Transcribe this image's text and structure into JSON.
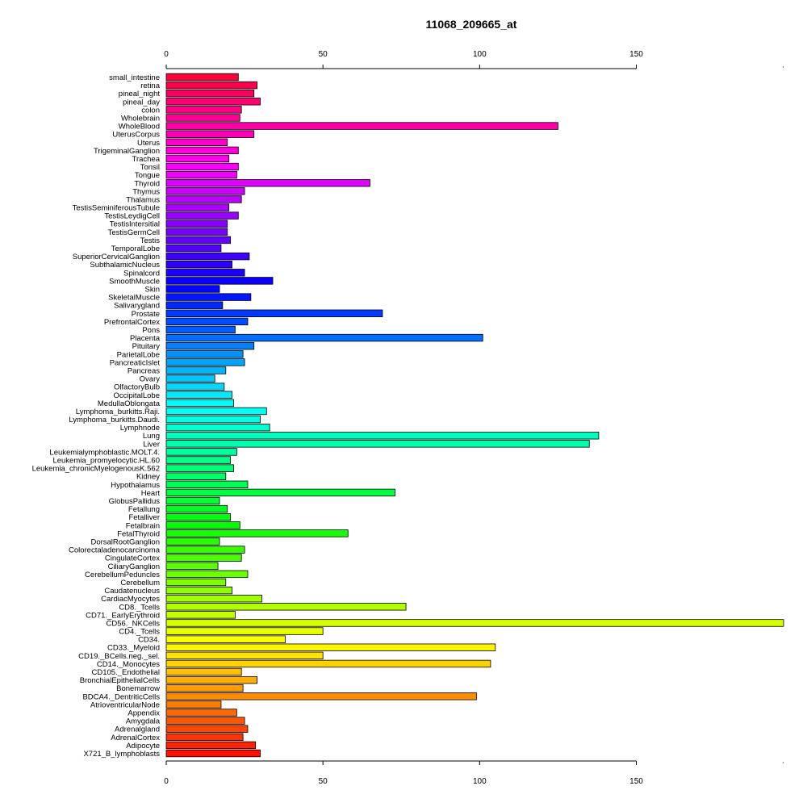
{
  "chart_data": {
    "type": "bar",
    "orientation": "horizontal",
    "title": "11068_209665_at",
    "xlabel": "",
    "ylabel": "",
    "xlim": [
      0,
      197
    ],
    "xticks": [
      0,
      50,
      100,
      150
    ],
    "grid": false,
    "categories": [
      "small_intestine",
      "retina",
      "pineal_night",
      "pineal_day",
      "colon",
      "Wholebrain",
      "WholeBlood",
      "UterusCorpus",
      "Uterus",
      "TrigeminalGanglion",
      "Trachea",
      "Tonsil",
      "Tongue",
      "Thyroid",
      "Thymus",
      "Thalamus",
      "TestisSeminiferousTubule",
      "TestisLeydigCell",
      "TestisIntersitial",
      "TestisGermCell",
      "Testis",
      "TemporalLobe",
      "SuperiorCervicalGanglion",
      "SubthalamicNucleus",
      "Spinalcord",
      "SmoothMuscle",
      "Skin",
      "SkeletalMuscle",
      "Salivarygland",
      "Prostate",
      "PrefrontalCortex",
      "Pons",
      "Placenta",
      "Pituitary",
      "ParietalLobe",
      "PancreaticIslet",
      "Pancreas",
      "Ovary",
      "OlfactoryBulb",
      "OccipitalLobe",
      "MedullaOblongata",
      "Lymphoma_burkitts.Raji.",
      "Lymphoma_burkitts.Daudi.",
      "Lymphnode",
      "Lung",
      "Liver",
      "Leukemialymphoblastic.MOLT.4.",
      "Leukemia_promyelocytic.HL.60",
      "Leukemia_chronicMyelogenousK.562",
      "Kidney",
      "Hypothalamus",
      "Heart",
      "GlobusPallidus",
      "Fetallung",
      "Fetalliver",
      "Fetalbrain",
      "FetalThyroid",
      "DorsalRootGanglion",
      "Colorectaladenocarcinoma",
      "CingulateCortex",
      "CiliaryGanglion",
      "CerebellumPeduncles",
      "Cerebellum",
      "Caudatenucleus",
      "CardiacMyocytes",
      "CD8._Tcells",
      "CD71._EarlyErythroid",
      "CD56._NKCells",
      "CD4._Tcells",
      "CD34.",
      "CD33._Myeloid",
      "CD19._BCells.neg._sel.",
      "CD14._Monocytes",
      "CD105._Endothelial",
      "BronchialEpithelialCells",
      "Bonemarrow",
      "BDCA4._DentriticCells",
      "AtrioventricularNode",
      "Appendix",
      "Amygdala",
      "Adrenalgland",
      "AdrenalCortex",
      "Adipocyte",
      "X721_B_lymphoblasts"
    ],
    "values": [
      23,
      29,
      28,
      30,
      24,
      23.5,
      125,
      28,
      19.5,
      23,
      20,
      23,
      22.5,
      65,
      25,
      24,
      20,
      23,
      19.5,
      19.5,
      20.5,
      17.5,
      26.5,
      21,
      25,
      34,
      17,
      27,
      18,
      69,
      26,
      22,
      101,
      28,
      24.5,
      25,
      19,
      15.5,
      18.5,
      21,
      21.5,
      32,
      30,
      33,
      138,
      135,
      22.5,
      20.5,
      21.5,
      19,
      26,
      73,
      17,
      19.5,
      20.5,
      23.5,
      58,
      17,
      25,
      24,
      16.5,
      26,
      19,
      21,
      30.5,
      76.5,
      22,
      197,
      50,
      38,
      105,
      50,
      103.5,
      24,
      29,
      24.5,
      99,
      17.5,
      22.5,
      25,
      26,
      24.5,
      28.5,
      30
    ]
  }
}
